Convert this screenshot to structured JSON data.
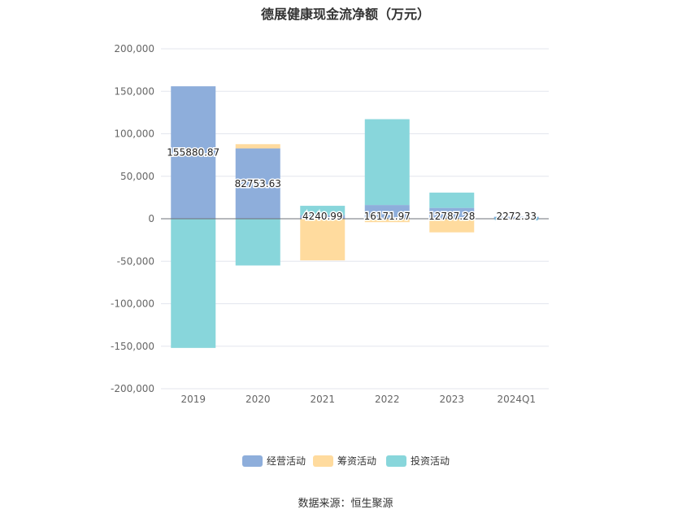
{
  "chart_data": {
    "type": "bar",
    "title": "德展健康现金流净额（万元）",
    "categories": [
      "2019",
      "2020",
      "2021",
      "2022",
      "2023",
      "2024Q1"
    ],
    "series": [
      {
        "name": "经营活动",
        "values": [
          155880.87,
          82753.63,
          4240.99,
          16171.97,
          12787.28,
          2272.33
        ],
        "color": "#8eaedb"
      },
      {
        "name": "筹资活动",
        "values": [
          0,
          5000,
          -49000,
          -4000,
          -16000,
          0
        ],
        "color": "#ffdb9e"
      },
      {
        "name": "投资活动",
        "values": [
          -152000,
          -55000,
          11000,
          101000,
          18000,
          0
        ],
        "color": "#88d6db"
      }
    ],
    "data_labels": [
      "155880.87",
      "82753.63",
      "4240.99",
      "16171.97",
      "12787.28",
      "2272.33"
    ],
    "y_ticks": [
      "200,000",
      "150,000",
      "100,000",
      "50,000",
      "0",
      "-50,000",
      "-100,000",
      "-150,000",
      "-200,000"
    ],
    "ylim": [
      -200000,
      200000
    ],
    "stacked": true,
    "legend_position": "bottom"
  },
  "source": "数据来源：恒生聚源"
}
